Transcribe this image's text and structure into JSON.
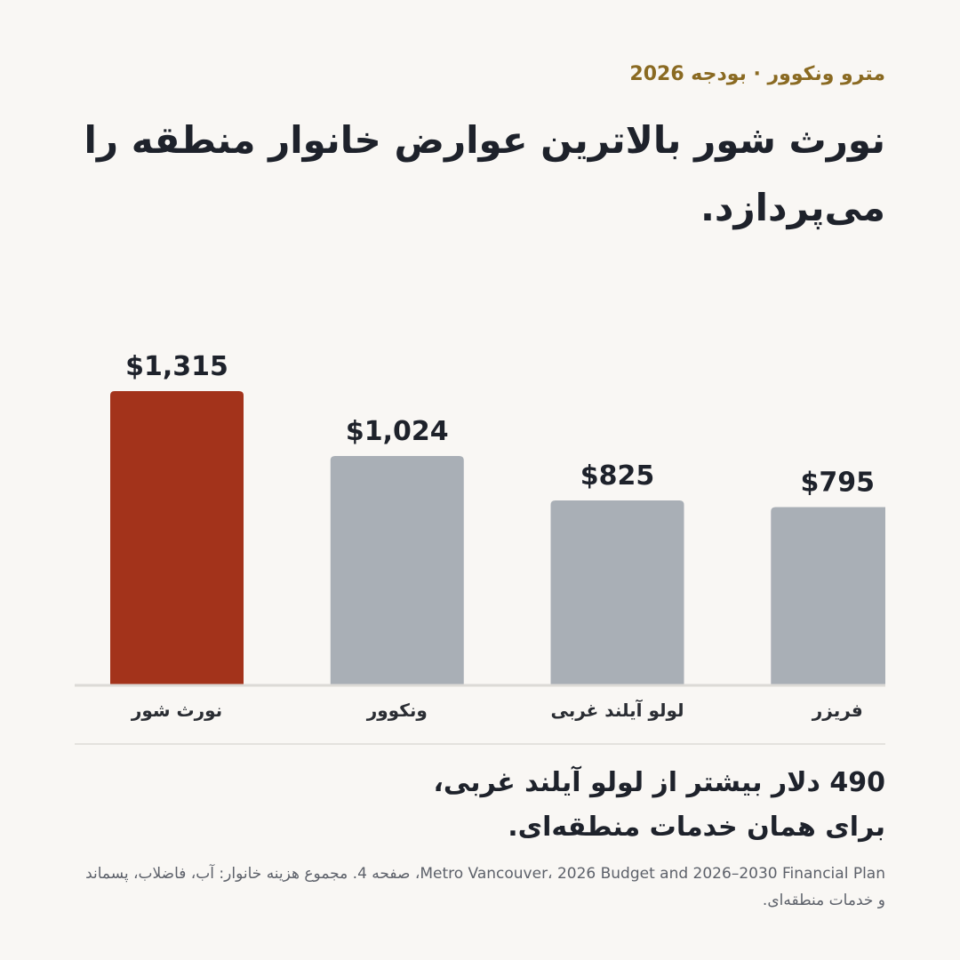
{
  "header": {
    "kicker": "مترو ونکوور · بودجه 2026",
    "title": "نورث شور بالاترین عوارض خانوار منطقه را می‌پردازد."
  },
  "chart_data": {
    "type": "bar",
    "categories": [
      "نورث شور",
      "ونکوور",
      "لولو آیلند غربی",
      "فریزر"
    ],
    "values": [
      1315,
      1024,
      825,
      795
    ],
    "value_labels": [
      "$1,315",
      "$1,024",
      "$825",
      "$795"
    ],
    "highlight_index": 0,
    "colors": {
      "highlight": "#a3331b",
      "default": "#a9afb6",
      "baseline": "#dcdad6"
    },
    "ylim": [
      0,
      1315
    ],
    "grid": false,
    "title": "",
    "xlabel": "",
    "ylabel": ""
  },
  "callout": {
    "line1": "490 دلار بیشتر از لولو آیلند غربی،",
    "line2": "برای همان خدمات منطقه‌ای."
  },
  "source": {
    "text": "Metro Vancouver، 2026 Budget and 2026–2030 Financial Plan، صفحه 4. مجموع هزینه خانوار: آب، فاضلاب، پسماند و خدمات منطقه‌ای."
  }
}
